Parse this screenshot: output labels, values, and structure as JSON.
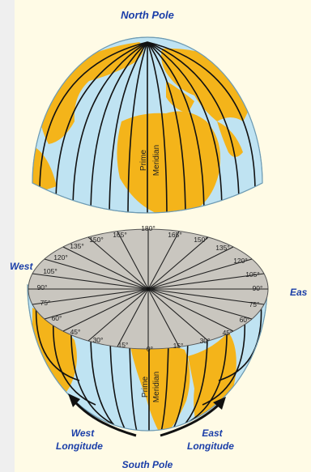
{
  "labels": {
    "north_pole": "North Pole",
    "south_pole": "South Pole",
    "west": "West",
    "east": "Eas",
    "prime_meridian_top": [
      "Prime",
      "Meridian"
    ],
    "prime_meridian_bottom": [
      "Prime",
      "Meridian"
    ],
    "west_longitude": [
      "West",
      "Longitude"
    ],
    "east_longitude": [
      "East",
      "Longitude"
    ]
  },
  "degree_labels": {
    "left": [
      "165°",
      "150°",
      "135°",
      "120°",
      "105°",
      "90°",
      "75°",
      "60°",
      "45°",
      "30°",
      "15°"
    ],
    "right": [
      "165°",
      "150°",
      "135°",
      "120°",
      "105°",
      "90°",
      "75°",
      "60°",
      "45°",
      "30°",
      "15°"
    ],
    "top": "180°",
    "bottom": "0°"
  },
  "colors": {
    "ocean": "#bfe3f2",
    "land": "#f4b41a",
    "disc": "#c9c6bf",
    "label_blue": "#1a3ea8",
    "background": "#fffbe6"
  }
}
